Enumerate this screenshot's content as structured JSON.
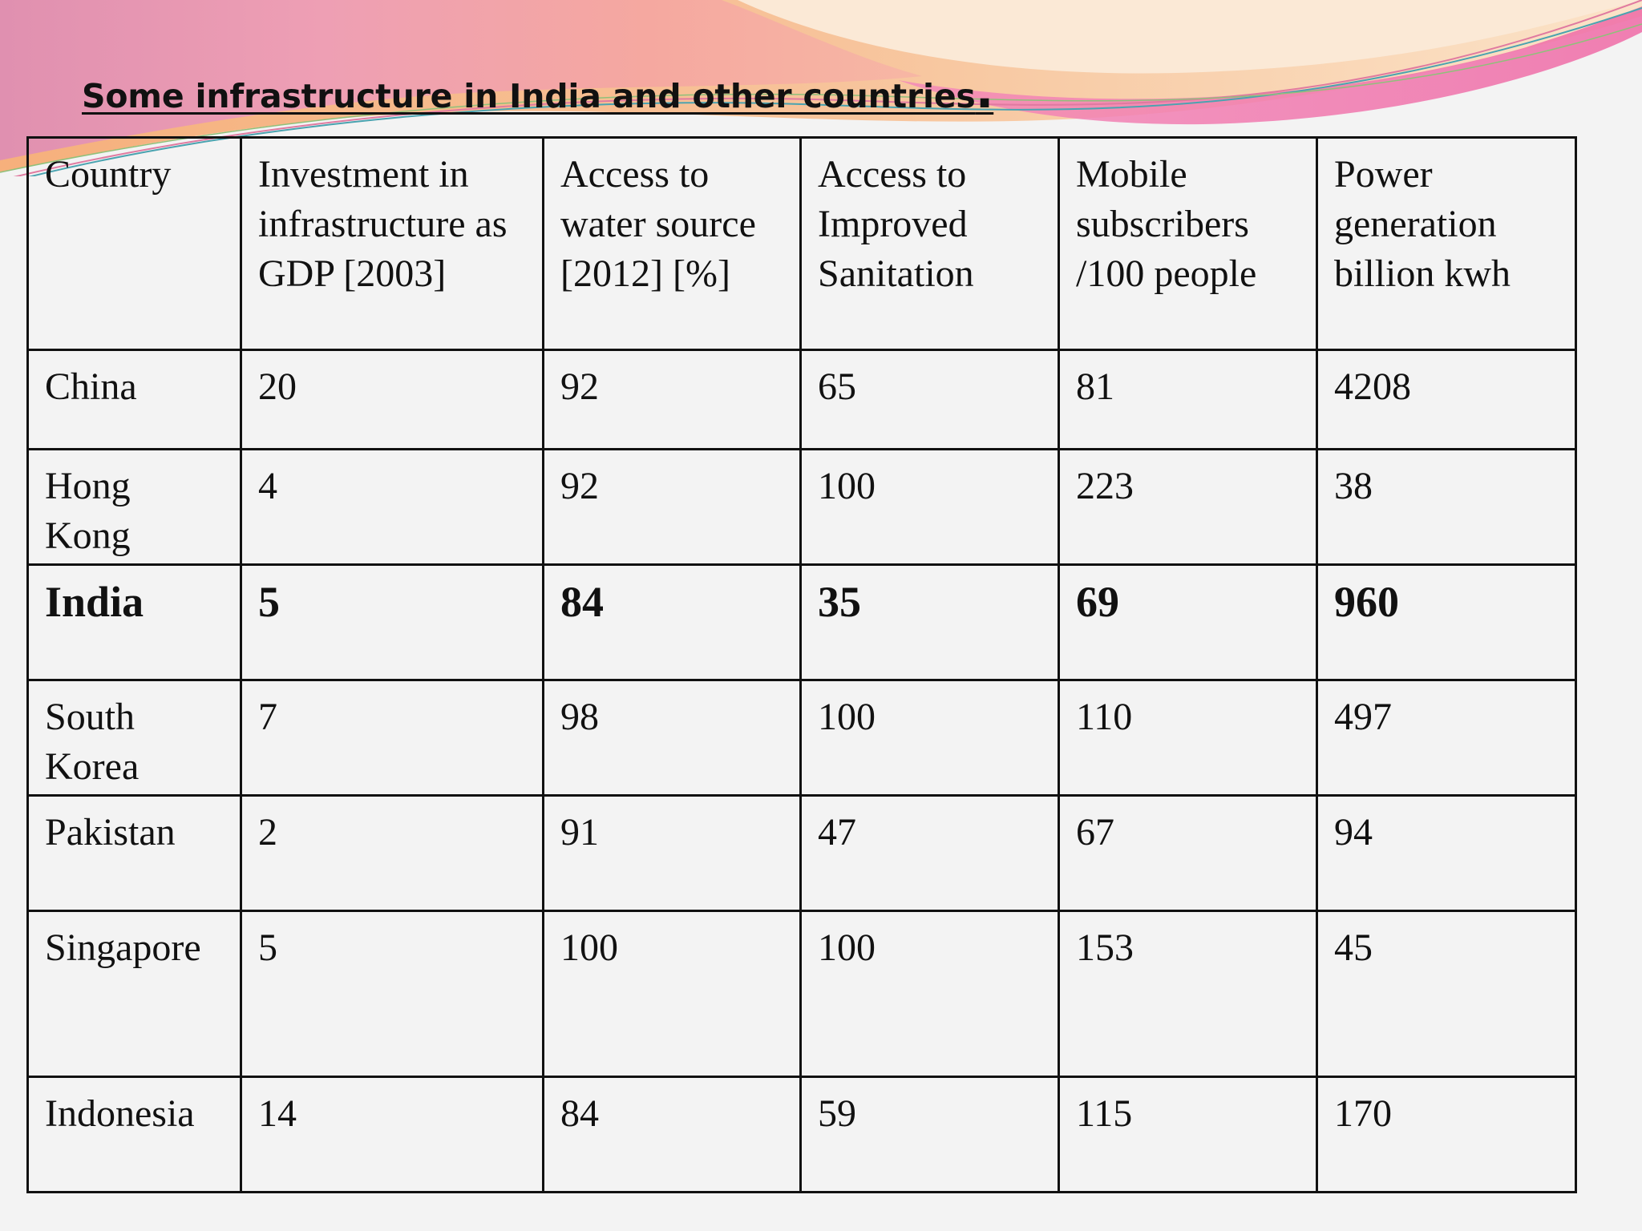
{
  "slide": {
    "title": "Some infrastructure in India and other countries",
    "title_end_mark": "."
  },
  "colors": {
    "background": "#f3f3f3",
    "banner_pink": "#e786b4",
    "banner_peach": "#f4b68f",
    "banner_cream": "#fbe6d2",
    "border": "#111111"
  },
  "table": {
    "headers": [
      "Country",
      "Investment in infrastructure as GDP [2003]",
      "Access to water source [2012] [%]",
      "Access to Improved Sanitation",
      "Mobile subscribers /100 people",
      "Power generation billion kwh"
    ],
    "rows": [
      {
        "cells": [
          "China",
          "20",
          "92",
          "65",
          "81",
          "4208"
        ]
      },
      {
        "cells": [
          "Hong Kong",
          "4",
          "92",
          "100",
          "223",
          "38"
        ]
      },
      {
        "cells": [
          "India",
          "5",
          "84",
          "35",
          "69",
          "960"
        ],
        "emphasis": "bold"
      },
      {
        "cells": [
          "South Korea",
          "7",
          "98",
          "100",
          "110",
          "497"
        ]
      },
      {
        "cells": [
          "Pakistan",
          "2",
          "91",
          "47",
          "67",
          "94"
        ]
      },
      {
        "cells": [
          "Singapore",
          "5",
          "100",
          "100",
          "153",
          "45"
        ]
      },
      {
        "cells": [
          "Indonesia",
          "14",
          "84",
          "59",
          "115",
          "170"
        ]
      }
    ]
  }
}
